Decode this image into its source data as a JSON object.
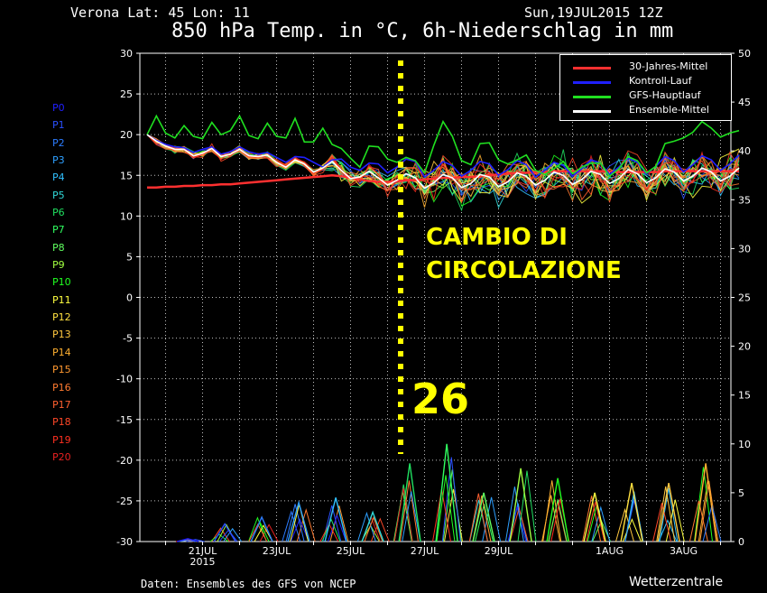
{
  "header": {
    "location": "Verona   Lat: 45 Lon: 11",
    "date": "Sun,19JUL2015 12Z",
    "title": "850 hPa Temp. in °C, 6h-Niederschlag in mm"
  },
  "footer": {
    "credit": "Daten: Ensembles des GFS von NCEP",
    "brand": "Wetterzentrale"
  },
  "members": [
    {
      "label": "P0",
      "color": "#2020ff"
    },
    {
      "label": "P1",
      "color": "#2a50ff"
    },
    {
      "label": "P2",
      "color": "#2c7cff"
    },
    {
      "label": "P3",
      "color": "#2ea0ff"
    },
    {
      "label": "P4",
      "color": "#30c0ff"
    },
    {
      "label": "P5",
      "color": "#30d8d8"
    },
    {
      "label": "P6",
      "color": "#20e060"
    },
    {
      "label": "P7",
      "color": "#30ff60"
    },
    {
      "label": "P8",
      "color": "#60ff60"
    },
    {
      "label": "P9",
      "color": "#a0ff40"
    },
    {
      "label": "P10",
      "color": "#20ff20"
    },
    {
      "label": "P11",
      "color": "#ffff40"
    },
    {
      "label": "P12",
      "color": "#ffe040"
    },
    {
      "label": "P13",
      "color": "#ffc840"
    },
    {
      "label": "P14",
      "color": "#ffb030"
    },
    {
      "label": "P15",
      "color": "#ff9830"
    },
    {
      "label": "P16",
      "color": "#ff7a30"
    },
    {
      "label": "P17",
      "color": "#ff6030"
    },
    {
      "label": "P18",
      "color": "#ff4828"
    },
    {
      "label": "P19",
      "color": "#ff3020"
    },
    {
      "label": "P20",
      "color": "#e82020"
    }
  ],
  "annotations": {
    "line1": "CAMBIO DI",
    "line2": "CIRCOLAZIONE",
    "day": "26",
    "color": "#ffff00"
  },
  "chart_data": {
    "type": "line",
    "x_tick_labels": [
      "21JUL",
      "23JUL",
      "25JUL",
      "27JUL",
      "29JUL",
      "1AUG",
      "3AUG"
    ],
    "x_tick_sublabel": "2015",
    "y_left": {
      "min": -30,
      "max": 30,
      "ticks": [
        30,
        25,
        20,
        15,
        10,
        5,
        0,
        -5,
        -10,
        -15,
        -20,
        -25,
        -30
      ]
    },
    "y_right": {
      "min": 0,
      "max": 50,
      "ticks": [
        50,
        45,
        40,
        35,
        30,
        25,
        20,
        15,
        10,
        5,
        0
      ]
    },
    "grid": true,
    "legend_position": "top-right",
    "x_steps_per_day": 4,
    "x_start": "19JUL2015 12Z",
    "series": [
      {
        "name": "30-Jahres-Mittel",
        "color": "#ff3030",
        "values": [
          13.5,
          13.5,
          13.6,
          13.6,
          13.7,
          13.7,
          13.8,
          13.8,
          13.9,
          13.9,
          14.0,
          14.1,
          14.2,
          14.3,
          14.4,
          14.5,
          14.6,
          14.7,
          14.8,
          14.9,
          15.0,
          14.9,
          14.7,
          14.5,
          14.3,
          14.2,
          14.2,
          14.3,
          14.4,
          14.4,
          14.5,
          14.6,
          14.7,
          14.7,
          14.8,
          14.8,
          14.9,
          15.0,
          15.1,
          15.2,
          15.3,
          15.3,
          15.4,
          15.4,
          15.5,
          15.5,
          15.5,
          15.5,
          15.5,
          15.5,
          15.5,
          15.4,
          15.4,
          15.4,
          15.4,
          15.4,
          15.5,
          15.5,
          15.5,
          15.5,
          15.5,
          15.5,
          15.5,
          15.5,
          15.5
        ]
      },
      {
        "name": "Kontroll-Lauf",
        "color": "#2020ff",
        "values": [
          20.0,
          19.3,
          18.8,
          18.5,
          18.4,
          17.8,
          18.2,
          18.5,
          17.6,
          17.9,
          18.5,
          17.9,
          17.6,
          17.8,
          17.2,
          16.6,
          17.3,
          17.2,
          16.6,
          16.0,
          16.9,
          17.0,
          16.0,
          15.6,
          16.5,
          16.4,
          15.3,
          16.0,
          17.0,
          16.7,
          14.8,
          15.6,
          16.7,
          16.2,
          14.9,
          15.6,
          16.7,
          16.4,
          15.0,
          15.7,
          16.8,
          16.3,
          14.8,
          15.6,
          16.6,
          16.2,
          14.9,
          15.8,
          16.9,
          16.5,
          15.1,
          16.0,
          17.1,
          16.6,
          15.2,
          16.1,
          17.3,
          16.8,
          15.4,
          16.3,
          17.4,
          16.9,
          15.6,
          16.4,
          17.5
        ]
      },
      {
        "name": "GFS-Hauptlauf",
        "color": "#20e020",
        "values": [
          20.0,
          22.3,
          20.2,
          19.6,
          21.1,
          19.8,
          19.5,
          21.5,
          20.0,
          20.5,
          22.3,
          19.9,
          19.5,
          21.4,
          19.8,
          19.6,
          22.0,
          19.1,
          19.1,
          20.8,
          18.8,
          18.3,
          17.1,
          16.0,
          18.6,
          18.5,
          17.0,
          16.6,
          17.2,
          16.8,
          15.3,
          18.7,
          21.6,
          19.8,
          16.8,
          16.3,
          18.9,
          19.0,
          16.9,
          16.4,
          16.9,
          17.5,
          15.6,
          15.1,
          15.8,
          16.7,
          15.2,
          16.0,
          16.5,
          16.5,
          14.9,
          15.8,
          17.3,
          16.8,
          15.3,
          16.1,
          18.9,
          19.2,
          19.6,
          20.3,
          21.6,
          20.8,
          19.7,
          20.2,
          20.5
        ]
      },
      {
        "name": "Ensemble-Mittel",
        "color": "#ffffff",
        "values": [
          20.0,
          19.2,
          18.6,
          18.2,
          18.2,
          17.4,
          17.7,
          18.3,
          17.3,
          17.6,
          18.2,
          17.4,
          17.3,
          17.5,
          16.6,
          16.0,
          16.9,
          16.4,
          15.4,
          15.9,
          16.7,
          15.6,
          14.6,
          14.8,
          15.5,
          14.7,
          13.8,
          14.4,
          15.2,
          14.7,
          13.4,
          14.1,
          15.1,
          14.7,
          13.5,
          14.0,
          15.1,
          14.8,
          13.6,
          14.2,
          15.3,
          14.9,
          13.8,
          14.4,
          15.4,
          15.0,
          13.9,
          14.5,
          15.5,
          15.1,
          14.0,
          14.6,
          15.7,
          15.2,
          14.1,
          14.7,
          15.8,
          15.4,
          14.3,
          14.9,
          15.9,
          15.4,
          14.3,
          14.9,
          15.9
        ]
      }
    ],
    "precipitation_axis": "right",
    "precipitation_peaks_mm": [
      {
        "day": "20JUL",
        "value": 0.3
      },
      {
        "day": "22JUL",
        "value": 1.8
      },
      {
        "day": "23JUL",
        "value": 2.5
      },
      {
        "day": "24JUL",
        "value": 4.0
      },
      {
        "day": "25JUL",
        "value": 4.5
      },
      {
        "day": "26JUL",
        "value": 3.0
      },
      {
        "day": "27JUL",
        "value": 8.0
      },
      {
        "day": "28JUL",
        "value": 10.0
      },
      {
        "day": "29JUL",
        "value": 5.0
      },
      {
        "day": "30JUL",
        "value": 7.5
      },
      {
        "day": "31JUL",
        "value": 6.5
      },
      {
        "day": "1AUG",
        "value": 5.0
      },
      {
        "day": "2AUG",
        "value": 6.0
      },
      {
        "day": "3AUG",
        "value": 6.0
      },
      {
        "day": "4AUG",
        "value": 8.0
      }
    ],
    "annotation_line_day": "26JUL"
  }
}
